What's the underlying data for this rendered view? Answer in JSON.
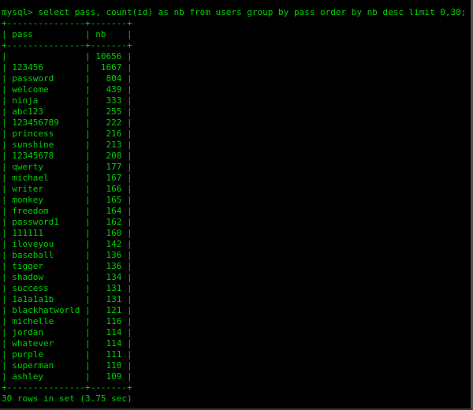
{
  "terminal": {
    "prompt": "mysql> ",
    "command": "select pass, count(id) as nb from users group by pass order by nb desc limit 0,30;",
    "text_color": "#00d000",
    "background": "#000000"
  },
  "table": {
    "columns": [
      "pass",
      "nb"
    ],
    "rows": [
      [
        "",
        "10656"
      ],
      [
        "123456",
        "1667"
      ],
      [
        "password",
        "804"
      ],
      [
        "welcome",
        "439"
      ],
      [
        "ninja",
        "333"
      ],
      [
        "abc123",
        "255"
      ],
      [
        "123456789",
        "222"
      ],
      [
        "princess",
        "216"
      ],
      [
        "sunshine",
        "213"
      ],
      [
        "12345678",
        "208"
      ],
      [
        "qwerty",
        "177"
      ],
      [
        "michael",
        "167"
      ],
      [
        "writer",
        "166"
      ],
      [
        "monkey",
        "165"
      ],
      [
        "freedom",
        "164"
      ],
      [
        "password1",
        "162"
      ],
      [
        "111111",
        "160"
      ],
      [
        "iloveyou",
        "142"
      ],
      [
        "baseball",
        "136"
      ],
      [
        "tigger",
        "136"
      ],
      [
        "shadow",
        "134"
      ],
      [
        "success",
        "131"
      ],
      [
        "1a1a1a1b",
        "131"
      ],
      [
        "blackhatworld",
        "121"
      ],
      [
        "michelle",
        "116"
      ],
      [
        "jordan",
        "114"
      ],
      [
        "whatever",
        "114"
      ],
      [
        "purple",
        "111"
      ],
      [
        "superman",
        "110"
      ],
      [
        "ashley",
        "109"
      ]
    ]
  },
  "status": "30 rows in set (3.75 sec)"
}
